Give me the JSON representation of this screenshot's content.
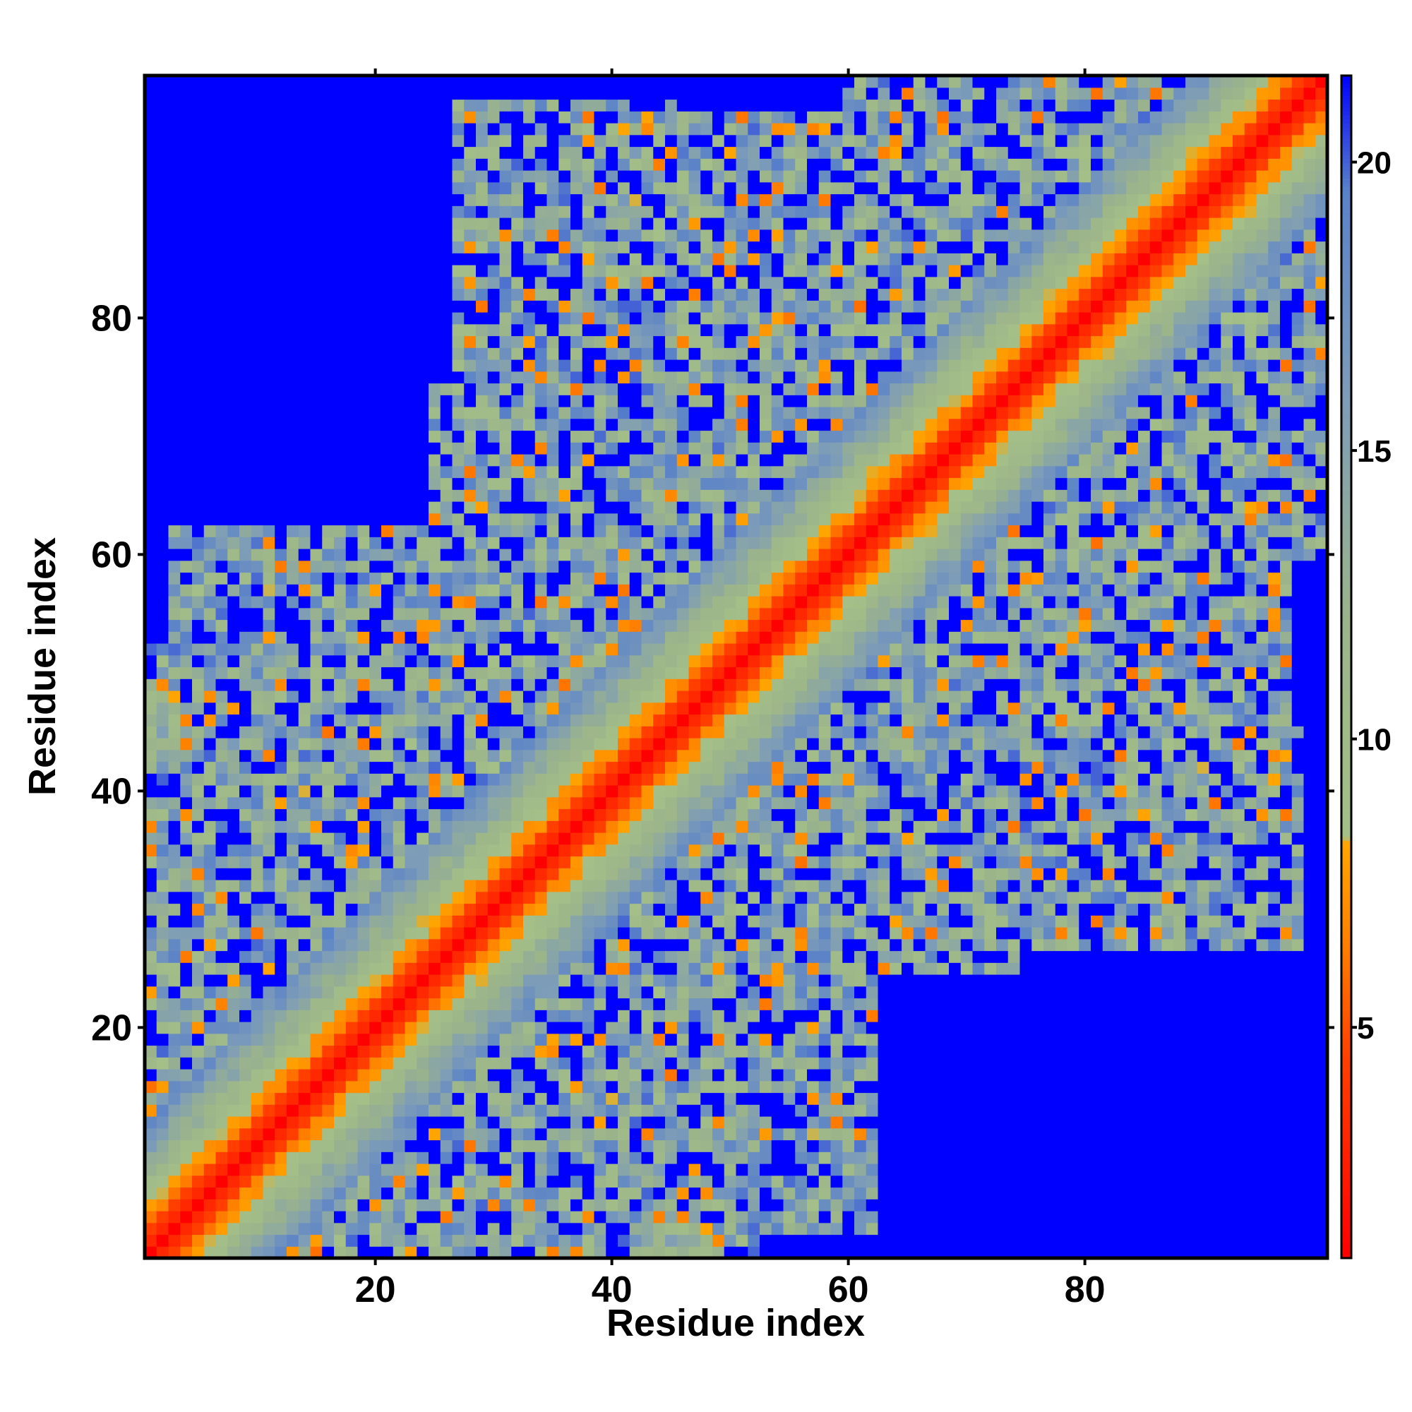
{
  "chart_data": {
    "type": "heatmap",
    "xlabel": "Residue index",
    "ylabel": "Residue index",
    "n_residues": 100,
    "xlim": [
      1,
      100
    ],
    "ylim": [
      1,
      100
    ],
    "x_ticks": [
      20,
      40,
      60,
      80
    ],
    "y_ticks": [
      20,
      40,
      60,
      80
    ],
    "value_range": [
      1,
      21.5
    ],
    "description_of_values": "pairwise residue distance, symmetric matrix, small on diagonal",
    "colorbar": {
      "ticks": [
        5,
        10,
        15,
        20
      ],
      "stops": [
        {
          "value": 1,
          "color": "#ff0000"
        },
        {
          "value": 4.5,
          "color": "#ff4000"
        },
        {
          "value": 6.5,
          "color": "#ff8000"
        },
        {
          "value": 8.2,
          "color": "#ffa500"
        },
        {
          "value": 8.3,
          "color": "#a4bf88"
        },
        {
          "value": 12,
          "color": "#9cb48a"
        },
        {
          "value": 16,
          "color": "#7d9cb8"
        },
        {
          "value": 19.5,
          "color": "#5a82c8"
        },
        {
          "value": 21.5,
          "color": "#0000ff"
        }
      ]
    },
    "cutoff_value": 21.5,
    "clusters": [
      {
        "x": [
          1,
          35
        ],
        "y": [
          1,
          35
        ]
      },
      {
        "x": [
          1,
          28
        ],
        "y": [
          25,
          52
        ]
      },
      {
        "x": [
          25,
          60
        ],
        "y": [
          25,
          75
        ]
      },
      {
        "x": [
          35,
          65
        ],
        "y": [
          45,
          97
        ]
      },
      {
        "x": [
          60,
          100
        ],
        "y": [
          60,
          100
        ]
      },
      {
        "x": [
          60,
          98
        ],
        "y": [
          27,
          45
        ]
      },
      {
        "x": [
          70,
          95
        ],
        "y": [
          45,
          60
        ]
      },
      {
        "x": [
          30,
          62
        ],
        "y": [
          3,
          25
        ]
      },
      {
        "x": [
          78,
          100
        ],
        "y": [
          80,
          100
        ]
      }
    ]
  }
}
